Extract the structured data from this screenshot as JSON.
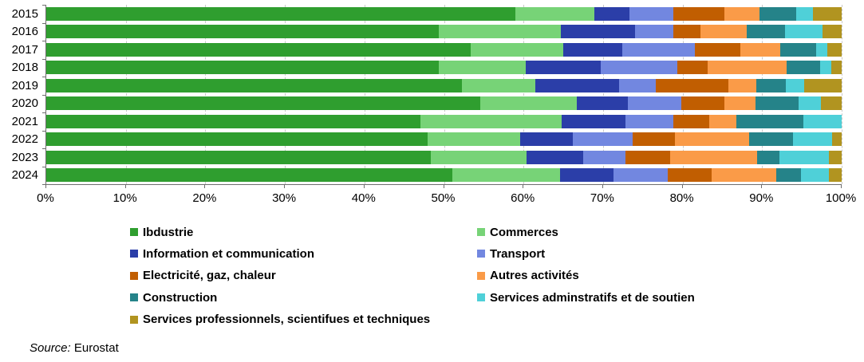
{
  "chart_data": {
    "type": "bar",
    "variant": "horizontal-stacked-100",
    "title": "",
    "xlabel": "",
    "ylabel": "",
    "xlim": [
      0,
      100
    ],
    "grid": "vertical-dashed",
    "legend_position": "bottom-two-columns",
    "categories": [
      "2015",
      "2016",
      "2017",
      "2018",
      "2019",
      "2020",
      "2021",
      "2022",
      "2023",
      "2024"
    ],
    "x_ticks": [
      "0%",
      "10%",
      "20%",
      "30%",
      "40%",
      "50%",
      "60%",
      "70%",
      "80%",
      "90%",
      "100%"
    ],
    "series": [
      {
        "name": "Ibdustrie",
        "color": "#2F9E2F",
        "values": [
          59.0,
          49.3,
          53.4,
          49.3,
          52.3,
          54.6,
          47.0,
          47.9,
          48.3,
          51.1
        ]
      },
      {
        "name": "Commerces",
        "color": "#77D377",
        "values": [
          9.9,
          15.4,
          11.6,
          11.0,
          9.2,
          12.1,
          17.8,
          11.7,
          12.1,
          13.5
        ]
      },
      {
        "name": "Information et communication",
        "color": "#2B3EA8",
        "values": [
          4.4,
          9.3,
          7.4,
          9.4,
          10.5,
          6.4,
          8.0,
          6.6,
          7.1,
          6.7
        ]
      },
      {
        "name": "Transport",
        "color": "#7287E0",
        "values": [
          5.5,
          4.8,
          9.1,
          9.6,
          4.6,
          6.7,
          6.0,
          7.5,
          5.3,
          6.8
        ]
      },
      {
        "name": "Electricité, gaz, chaleur",
        "color": "#C15E01",
        "values": [
          6.5,
          3.4,
          5.8,
          3.9,
          9.2,
          5.5,
          4.6,
          5.3,
          5.6,
          5.6
        ]
      },
      {
        "name": "Autres activités",
        "color": "#FA9B48",
        "values": [
          4.4,
          5.9,
          5.0,
          9.9,
          3.5,
          3.9,
          3.4,
          9.4,
          11.0,
          8.1
        ]
      },
      {
        "name": "Construction",
        "color": "#258389",
        "values": [
          4.6,
          4.8,
          4.5,
          4.2,
          3.7,
          5.4,
          8.4,
          5.5,
          2.8,
          3.1
        ]
      },
      {
        "name": "Services adminstratifs et de soutien",
        "color": "#4FD0D8",
        "values": [
          2.1,
          4.7,
          1.4,
          1.4,
          2.3,
          2.8,
          4.8,
          4.9,
          6.2,
          3.5
        ]
      },
      {
        "name": "Services professionnels, scientifues et techniques",
        "color": "#B19420",
        "values": [
          3.6,
          2.4,
          1.8,
          1.3,
          4.7,
          2.6,
          0.0,
          1.2,
          1.6,
          1.6
        ]
      }
    ]
  },
  "source": {
    "label": "Source:",
    "value": "Eurostat"
  }
}
